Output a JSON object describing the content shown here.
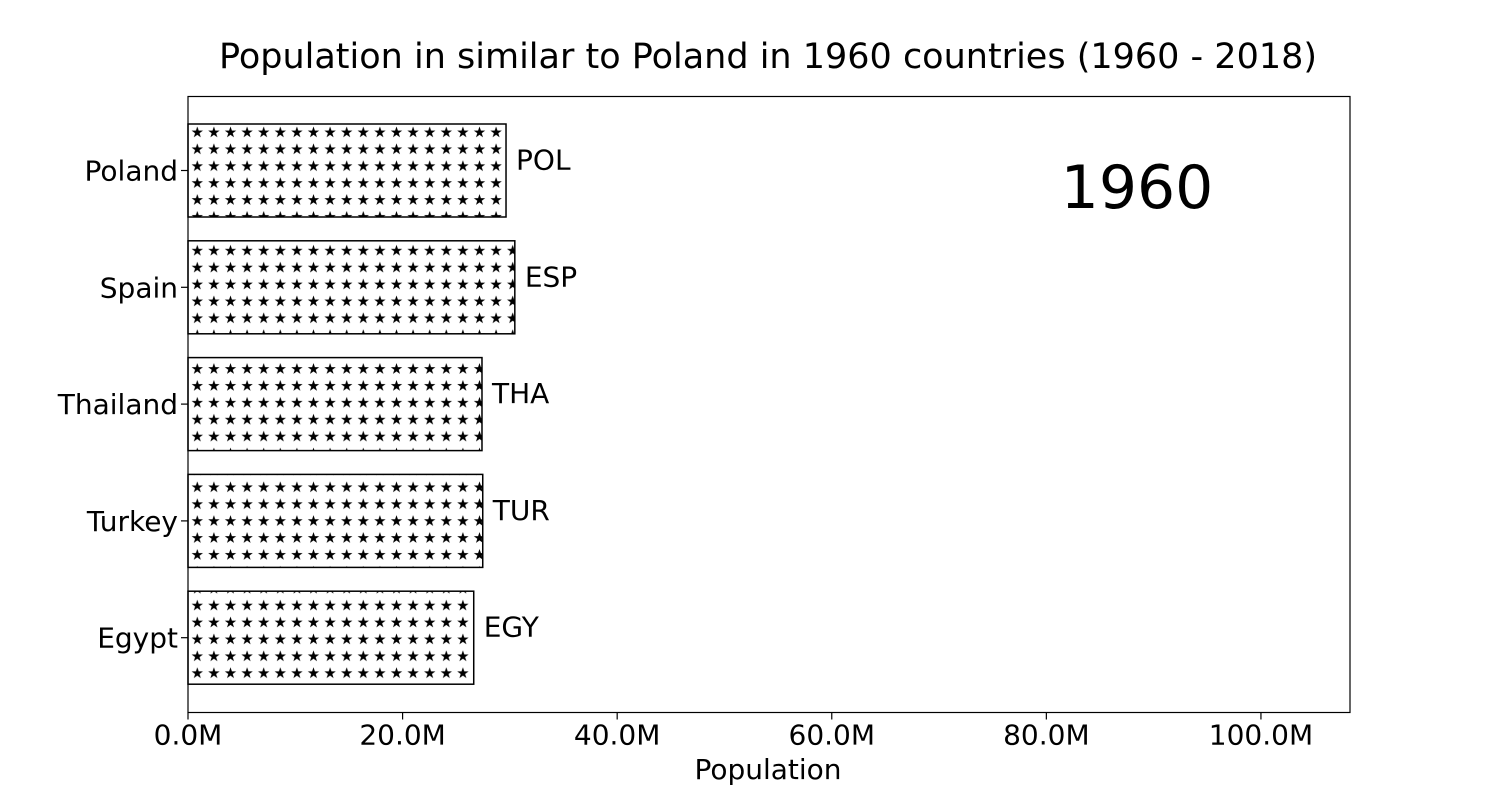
{
  "chart_data": {
    "type": "bar",
    "orientation": "horizontal",
    "title": "Population in similar to Poland in 1960 countries (1960 - 2018)",
    "xlabel": "Population",
    "ylabel": "",
    "xlim": [
      0,
      108300000
    ],
    "xticks": [
      0,
      20000000,
      40000000,
      60000000,
      80000000,
      100000000
    ],
    "xtick_labels": [
      "0.0M",
      "20.0M",
      "40.0M",
      "60.0M",
      "80.0M",
      "100.0M"
    ],
    "categories": [
      "Poland",
      "Spain",
      "Thailand",
      "Turkey",
      "Egypt"
    ],
    "values": [
      29640000,
      30460000,
      27400000,
      27470000,
      26630000
    ],
    "bar_labels": [
      "POL",
      "ESP",
      "THA",
      "TUR",
      "EGY"
    ],
    "annotation": "1960",
    "grid": false,
    "legend": "none",
    "bar_fill": "#ffffff",
    "bar_pattern": "stars",
    "bar_edge": "#000000"
  }
}
